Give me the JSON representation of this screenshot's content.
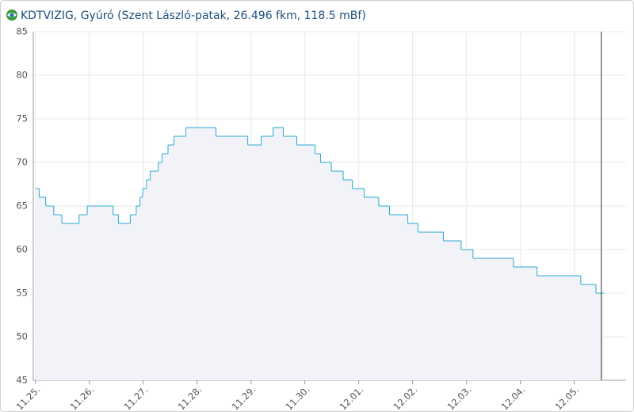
{
  "chart_data": {
    "type": "step",
    "title": "KDTVIZIG, Gyúró (Szent László-patak, 26.496 fkm, 118.5 mBf)",
    "series": [
      {
        "color": "#2aa9d2",
        "x": [
          0.0,
          0.07,
          0.19,
          0.34,
          0.49,
          0.81,
          0.96,
          1.44,
          1.54,
          1.76,
          1.87,
          1.94,
          1.99,
          2.06,
          2.13,
          2.28,
          2.35,
          2.46,
          2.57,
          2.79,
          3.35,
          3.94,
          4.19,
          4.41,
          4.6,
          4.85,
          5.19,
          5.29,
          5.49,
          5.71,
          5.88,
          6.1,
          6.37,
          6.57,
          6.91,
          7.1,
          7.57,
          7.9,
          8.12,
          8.87,
          9.31,
          10.12,
          10.4,
          10.54
        ],
        "values": [
          67,
          66,
          65,
          64,
          63,
          64,
          65,
          64,
          63,
          64,
          65,
          66,
          67,
          68,
          69,
          70,
          71,
          72,
          73,
          74,
          73,
          72,
          73,
          74,
          73,
          72,
          71,
          70,
          69,
          68,
          67,
          66,
          65,
          64,
          63,
          62,
          61,
          60,
          59,
          58,
          57,
          56,
          55,
          55
        ]
      }
    ],
    "now_line": 10.5,
    "xlim": [
      -0.04,
      10.96
    ],
    "xticks": [
      {
        "value": 0,
        "label": "11.25."
      },
      {
        "value": 1,
        "label": "11.26."
      },
      {
        "value": 2,
        "label": "11.27."
      },
      {
        "value": 3,
        "label": "11.28."
      },
      {
        "value": 4,
        "label": "11.29."
      },
      {
        "value": 5,
        "label": "11.30."
      },
      {
        "value": 6,
        "label": "12.01."
      },
      {
        "value": 7,
        "label": "12.02."
      },
      {
        "value": 8,
        "label": "12.03."
      },
      {
        "value": 9,
        "label": "12.04."
      },
      {
        "value": 10,
        "label": "12.05."
      }
    ],
    "ylim": [
      45,
      85
    ],
    "yticks": [
      45,
      50,
      55,
      60,
      65,
      70,
      75,
      80,
      85
    ],
    "grid": true
  }
}
